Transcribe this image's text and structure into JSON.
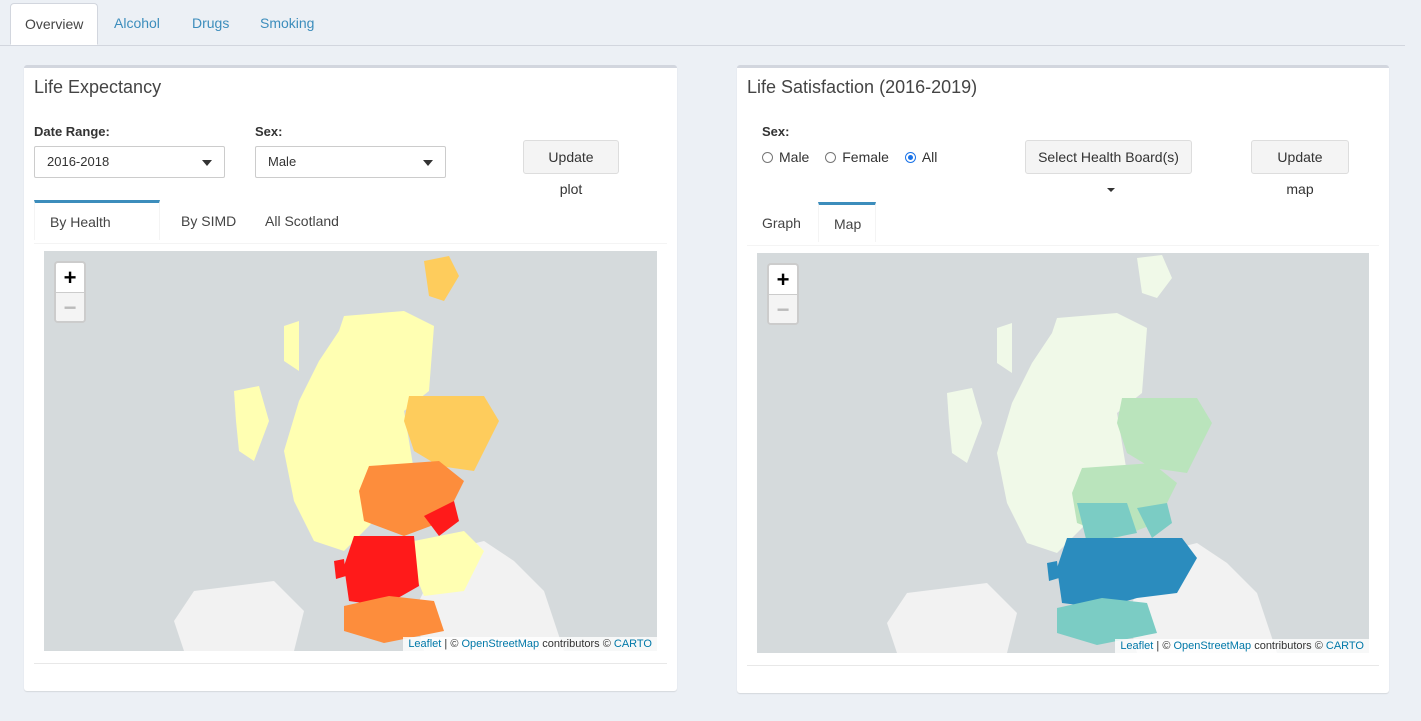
{
  "nav": {
    "tabs": [
      {
        "label": "Overview",
        "active": true
      },
      {
        "label": "Alcohol",
        "active": false
      },
      {
        "label": "Drugs",
        "active": false
      },
      {
        "label": "Smoking",
        "active": false
      }
    ]
  },
  "left_panel": {
    "title": "Life Expectancy",
    "date_range_label": "Date Range:",
    "date_range_value": "2016-2018",
    "sex_label": "Sex:",
    "sex_value": "Male",
    "update_button": "Update plot",
    "tabs": [
      "By Health Board",
      "By SIMD",
      "All Scotland"
    ],
    "active_tab": "By Health Board",
    "colors": {
      "low": "#ffffb2",
      "mid_low": "#fecc5c",
      "mid": "#fd8d3c",
      "high": "#f03b20",
      "highest": "#ff1a1a"
    }
  },
  "right_panel": {
    "title": "Life Satisfaction (2016-2019)",
    "sex_label": "Sex:",
    "sex_options": [
      "Male",
      "Female",
      "All"
    ],
    "sex_selected": "All",
    "health_board_button": "Select Health Board(s)",
    "update_button": "Update map",
    "tabs": [
      "Graph",
      "Map"
    ],
    "active_tab": "Map",
    "colors": {
      "low": "#f0f9e8",
      "mid_low": "#bae4bc",
      "mid": "#7bccc4",
      "high": "#2b8cbe"
    }
  },
  "map_common": {
    "zoom_in": "+",
    "zoom_out": "−",
    "attribution": {
      "leaflet": "Leaflet",
      "sep1": " | © ",
      "osm": "OpenStreetMap",
      "contrib": " contributors © ",
      "carto": "CARTO"
    }
  }
}
